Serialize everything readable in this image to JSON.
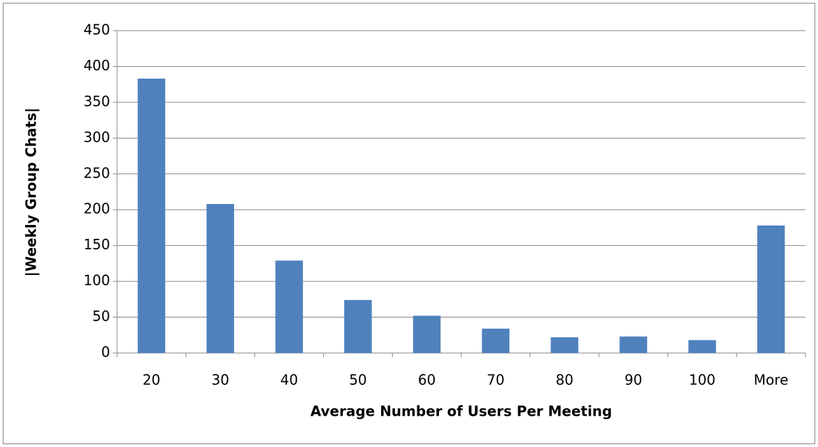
{
  "chart_data": {
    "type": "bar",
    "x_label": "Average Number of Users Per Meeting",
    "y_label": "|Weekly Group Chats|",
    "categories": [
      "20",
      "30",
      "40",
      "50",
      "60",
      "70",
      "80",
      "90",
      "100",
      "More"
    ],
    "values": [
      383,
      208,
      129,
      74,
      52,
      34,
      22,
      23,
      18,
      178
    ],
    "color": "#4f81bd",
    "ylim": [
      0,
      450
    ],
    "yticks": [
      0,
      50,
      100,
      150,
      200,
      250,
      300,
      350,
      400,
      450
    ],
    "grid": true
  }
}
